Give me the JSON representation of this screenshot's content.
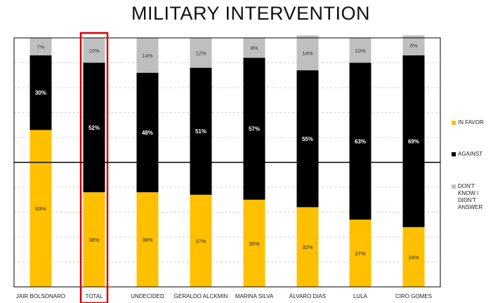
{
  "chart_data": {
    "type": "bar",
    "stacked": true,
    "title": "MILITARY INTERVENTION",
    "xlabel": "",
    "ylabel": "",
    "ylim": [
      0,
      100
    ],
    "categories": [
      "JAIR BOLSONARO",
      "TOTAL",
      "UNDECIDED",
      "GERALDO ALCKMIN",
      "MARINA SILVA",
      "ÁLVARO DIAS",
      "LULA",
      "CIRO GOMES"
    ],
    "highlighted_category": "TOTAL",
    "series": [
      {
        "name": "IN FAVOR",
        "color": "#ffc000",
        "values": [
          63,
          38,
          38,
          37,
          35,
          32,
          27,
          24
        ],
        "labels": [
          "63%",
          "38%",
          "38%",
          "37%",
          "35%",
          "32%",
          "27%",
          "24%"
        ]
      },
      {
        "name": "AGAINST",
        "color": "#000000",
        "values": [
          30,
          52,
          48,
          51,
          57,
          55,
          63,
          69
        ],
        "labels": [
          "30%",
          "52%",
          "48%",
          "51%",
          "57%",
          "55%",
          "63%",
          "69%"
        ]
      },
      {
        "name": "DON'T KNOW / DIDN'T ANSWER",
        "color": "#bfbfbf",
        "values": [
          7,
          10,
          14,
          12,
          8,
          14,
          10,
          8
        ],
        "labels": [
          "7%",
          "10%",
          "14%",
          "12%",
          "8%",
          "14%",
          "10%",
          "8%"
        ]
      }
    ],
    "reference_line": 50,
    "grid": true,
    "legend_position": "right",
    "legend": [
      {
        "lines": [
          "IN FAVOR"
        ]
      },
      {
        "lines": [
          "AGAINST"
        ]
      },
      {
        "lines": [
          "DON'T",
          "KNOW /",
          "DIDN'T",
          "ANSWER"
        ]
      }
    ]
  }
}
